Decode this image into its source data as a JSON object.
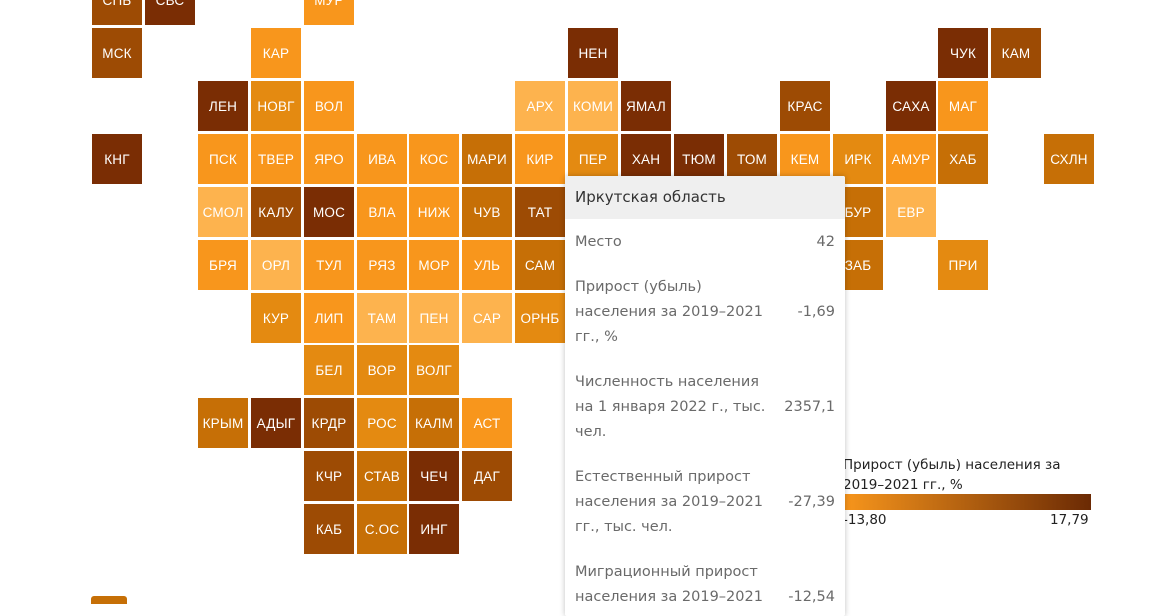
{
  "colors": {
    "c1": "#fdb34e",
    "c2": "#f8961c",
    "c3": "#e48a11",
    "c4": "#c66f06",
    "c5": "#9d4b04",
    "c6": "#7a2d04",
    "legend_min_color": "#f8961c",
    "legend_max_color": "#6b2a04",
    "background": "#ffffff"
  },
  "map": {
    "tiles": [
      {
        "label": "СПБ",
        "col": 0,
        "row": -1,
        "tone": "c5"
      },
      {
        "label": "СВС",
        "col": 1,
        "row": -1,
        "tone": "c6"
      },
      {
        "label": "МУР",
        "col": 4,
        "row": -1,
        "tone": "c2"
      },
      {
        "label": "МСК",
        "col": 0,
        "row": 0,
        "tone": "c5"
      },
      {
        "label": "КАР",
        "col": 3,
        "row": 0,
        "tone": "c2"
      },
      {
        "label": "НЕН",
        "col": 9,
        "row": 0,
        "tone": "c6"
      },
      {
        "label": "ЧУК",
        "col": 16,
        "row": 0,
        "tone": "c6"
      },
      {
        "label": "КАМ",
        "col": 17,
        "row": 0,
        "tone": "c5"
      },
      {
        "label": "ЛЕН",
        "col": 2,
        "row": 1,
        "tone": "c6"
      },
      {
        "label": "НОВГ",
        "col": 3,
        "row": 1,
        "tone": "c3"
      },
      {
        "label": "ВОЛ",
        "col": 4,
        "row": 1,
        "tone": "c2"
      },
      {
        "label": "АРХ",
        "col": 8,
        "row": 1,
        "tone": "c1"
      },
      {
        "label": "КОМИ",
        "col": 9,
        "row": 1,
        "tone": "c1"
      },
      {
        "label": "ЯМАЛ",
        "col": 10,
        "row": 1,
        "tone": "c6"
      },
      {
        "label": "КРАС",
        "col": 13,
        "row": 1,
        "tone": "c5"
      },
      {
        "label": "САХА",
        "col": 15,
        "row": 1,
        "tone": "c6"
      },
      {
        "label": "МАГ",
        "col": 16,
        "row": 1,
        "tone": "c2"
      },
      {
        "label": "КНГ",
        "col": 0,
        "row": 2,
        "tone": "c6"
      },
      {
        "label": "ПСК",
        "col": 2,
        "row": 2,
        "tone": "c2"
      },
      {
        "label": "ТВЕР",
        "col": 3,
        "row": 2,
        "tone": "c2"
      },
      {
        "label": "ЯРО",
        "col": 4,
        "row": 2,
        "tone": "c2"
      },
      {
        "label": "ИВА",
        "col": 5,
        "row": 2,
        "tone": "c2"
      },
      {
        "label": "КОС",
        "col": 6,
        "row": 2,
        "tone": "c2"
      },
      {
        "label": "МАРИ",
        "col": 7,
        "row": 2,
        "tone": "c4"
      },
      {
        "label": "КИР",
        "col": 8,
        "row": 2,
        "tone": "c2"
      },
      {
        "label": "ПЕР",
        "col": 9,
        "row": 2,
        "tone": "c3"
      },
      {
        "label": "ХАН",
        "col": 10,
        "row": 2,
        "tone": "c6"
      },
      {
        "label": "ТЮМ",
        "col": 11,
        "row": 2,
        "tone": "c6"
      },
      {
        "label": "ТОМ",
        "col": 12,
        "row": 2,
        "tone": "c5"
      },
      {
        "label": "КЕМ",
        "col": 13,
        "row": 2,
        "tone": "c2"
      },
      {
        "label": "ИРК",
        "col": 14,
        "row": 2,
        "tone": "c3"
      },
      {
        "label": "АМУР",
        "col": 15,
        "row": 2,
        "tone": "c2"
      },
      {
        "label": "ХАБ",
        "col": 16,
        "row": 2,
        "tone": "c4"
      },
      {
        "label": "СХЛН",
        "col": 18,
        "row": 2,
        "tone": "c4"
      },
      {
        "label": "СМОЛ",
        "col": 2,
        "row": 3,
        "tone": "c1"
      },
      {
        "label": "КАЛУ",
        "col": 3,
        "row": 3,
        "tone": "c5"
      },
      {
        "label": "МОС",
        "col": 4,
        "row": 3,
        "tone": "c6"
      },
      {
        "label": "ВЛА",
        "col": 5,
        "row": 3,
        "tone": "c2"
      },
      {
        "label": "НИЖ",
        "col": 6,
        "row": 3,
        "tone": "c2"
      },
      {
        "label": "ЧУВ",
        "col": 7,
        "row": 3,
        "tone": "c4"
      },
      {
        "label": "ТАТ",
        "col": 8,
        "row": 3,
        "tone": "c5"
      },
      {
        "label": "БУР",
        "col": 14,
        "row": 3,
        "tone": "c4"
      },
      {
        "label": "ЕВР",
        "col": 15,
        "row": 3,
        "tone": "c1"
      },
      {
        "label": "БРЯ",
        "col": 2,
        "row": 4,
        "tone": "c2"
      },
      {
        "label": "ОРЛ",
        "col": 3,
        "row": 4,
        "tone": "c1"
      },
      {
        "label": "ТУЛ",
        "col": 4,
        "row": 4,
        "tone": "c2"
      },
      {
        "label": "РЯЗ",
        "col": 5,
        "row": 4,
        "tone": "c2"
      },
      {
        "label": "МОР",
        "col": 6,
        "row": 4,
        "tone": "c2"
      },
      {
        "label": "УЛЬ",
        "col": 7,
        "row": 4,
        "tone": "c2"
      },
      {
        "label": "САМ",
        "col": 8,
        "row": 4,
        "tone": "c4"
      },
      {
        "label": "ЗАБ",
        "col": 14,
        "row": 4,
        "tone": "c4"
      },
      {
        "label": "ПРИ",
        "col": 16,
        "row": 4,
        "tone": "c3"
      },
      {
        "label": "КУР",
        "col": 3,
        "row": 5,
        "tone": "c3"
      },
      {
        "label": "ЛИП",
        "col": 4,
        "row": 5,
        "tone": "c2"
      },
      {
        "label": "ТАМ",
        "col": 5,
        "row": 5,
        "tone": "c1"
      },
      {
        "label": "ПЕН",
        "col": 6,
        "row": 5,
        "tone": "c1"
      },
      {
        "label": "САР",
        "col": 7,
        "row": 5,
        "tone": "c1"
      },
      {
        "label": "ОРНБ",
        "col": 8,
        "row": 5,
        "tone": "c3"
      },
      {
        "label": "БЕЛ",
        "col": 4,
        "row": 6,
        "tone": "c3"
      },
      {
        "label": "ВОР",
        "col": 5,
        "row": 6,
        "tone": "c3"
      },
      {
        "label": "ВОЛГ",
        "col": 6,
        "row": 6,
        "tone": "c3"
      },
      {
        "label": "КРЫМ",
        "col": 2,
        "row": 7,
        "tone": "c4"
      },
      {
        "label": "АДЫГ",
        "col": 3,
        "row": 7,
        "tone": "c6"
      },
      {
        "label": "КРДР",
        "col": 4,
        "row": 7,
        "tone": "c5"
      },
      {
        "label": "РОС",
        "col": 5,
        "row": 7,
        "tone": "c3"
      },
      {
        "label": "КАЛМ",
        "col": 6,
        "row": 7,
        "tone": "c4"
      },
      {
        "label": "АСТ",
        "col": 7,
        "row": 7,
        "tone": "c2"
      },
      {
        "label": "КЧР",
        "col": 4,
        "row": 8,
        "tone": "c5"
      },
      {
        "label": "СТАВ",
        "col": 5,
        "row": 8,
        "tone": "c4"
      },
      {
        "label": "ЧЕЧ",
        "col": 6,
        "row": 8,
        "tone": "c6"
      },
      {
        "label": "ДАГ",
        "col": 7,
        "row": 8,
        "tone": "c5"
      },
      {
        "label": "КАБ",
        "col": 4,
        "row": 9,
        "tone": "c5"
      },
      {
        "label": "С.ОС",
        "col": 5,
        "row": 9,
        "tone": "c4"
      },
      {
        "label": "ИНГ",
        "col": 6,
        "row": 9,
        "tone": "c6"
      }
    ]
  },
  "tooltip": {
    "title": "Иркутская область",
    "rows": [
      {
        "label": "Место",
        "value": "42"
      },
      {
        "label": "Прирост (убыль) населения за 2019–2021 гг., %",
        "value": "-1,69"
      },
      {
        "label": "Численность населения на 1 января 2022 г., тыс. чел.",
        "value": "2357,1"
      },
      {
        "label": "Естественный прирост населения за 2019–2021 гг., тыс. чел.",
        "value": "-27,39"
      },
      {
        "label": "Миграционный прирост населения за 2019–2021",
        "value": "-12,54"
      }
    ]
  },
  "legend": {
    "title": "Прирост (убыль) населения за 2019–2021 гг., %",
    "min": "-13,80",
    "max": "17,79"
  }
}
